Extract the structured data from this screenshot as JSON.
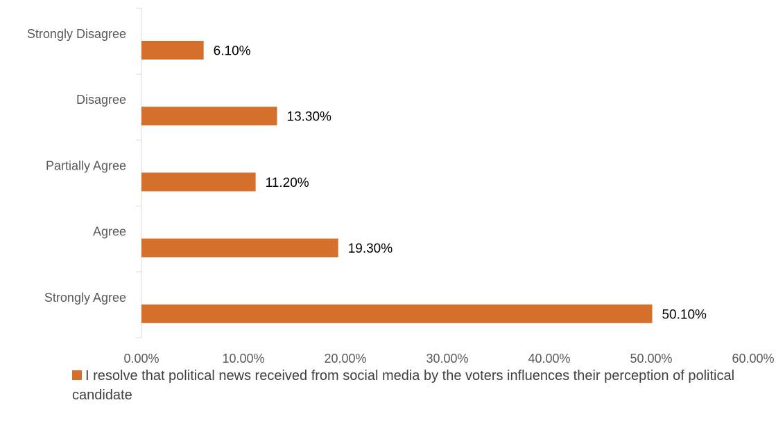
{
  "chart_data": {
    "type": "bar",
    "orientation": "horizontal",
    "categories": [
      "Strongly Disagree",
      "Disagree",
      "Partially Agree",
      "Agree",
      "Strongly Agree"
    ],
    "series": [
      {
        "name": "I resolve that political news received from social media by the voters influences their perception of political candidate",
        "values": [
          6.1,
          13.3,
          11.2,
          19.3,
          50.1
        ],
        "labels": [
          "6.10%",
          "13.30%",
          "11.20%",
          "19.30%",
          "50.10%"
        ],
        "color": "#D4702C"
      }
    ],
    "x_ticks": [
      "0.00%",
      "10.00%",
      "20.00%",
      "30.00%",
      "40.00%",
      "50.00%",
      "60.00%"
    ],
    "xlim": [
      0,
      60
    ],
    "title": "",
    "xlabel": "",
    "ylabel": "",
    "grid": false,
    "legend": "bottom"
  }
}
